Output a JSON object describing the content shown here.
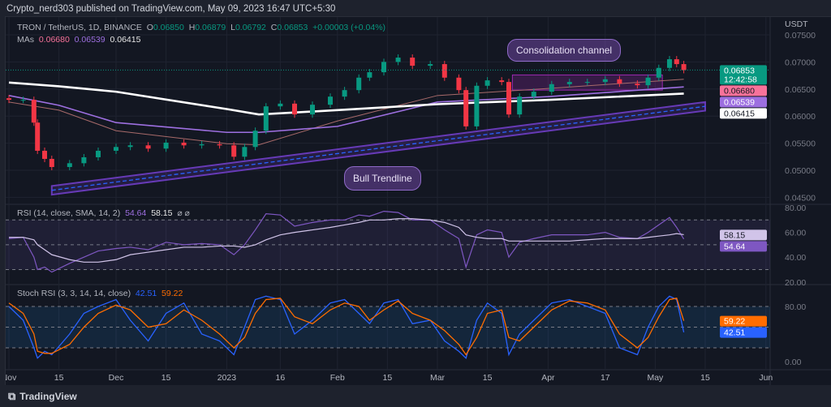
{
  "header": {
    "published": "Crypto_nerd303 published on TradingView.com, May 09, 2023 16:47 UTC+5:30"
  },
  "legend": {
    "symbol": "TRON / TetherUS, 1D, BINANCE",
    "o_label": "O",
    "o": "0.06850",
    "h_label": "H",
    "h": "0.06879",
    "l_label": "L",
    "l": "0.06792",
    "c_label": "C",
    "c": "0.06853",
    "change": "+0.00003 (+0.04%)",
    "mas_label": "MAs",
    "ma1": "0.06680",
    "ma2": "0.06539",
    "ma3": "0.06415"
  },
  "rsi_legend": {
    "label": "RSI (14, close, SMA, 14, 2)",
    "rsi": "54.64",
    "sma": "58.15",
    "icons": "⌀ ⌀"
  },
  "stoch_legend": {
    "label": "Stoch RSI (3, 3, 14, 14, close)",
    "k": "42.51",
    "d": "59.22"
  },
  "currency": "USDT",
  "annotations": {
    "consolidation": "Consolidation channel",
    "trendline": "Bull Trendline"
  },
  "price_tags": {
    "last": "0.06853",
    "countdown": "12:42:58",
    "ma1": "0.06680",
    "ma2": "0.06539",
    "ma3": "0.06415"
  },
  "rsi_tags": {
    "sma": "58.15",
    "rsi": "54.64"
  },
  "stoch_tags": {
    "d": "59.22",
    "k": "42.51"
  },
  "footer": {
    "brand": "TradingView"
  },
  "colors": {
    "up": "#089981",
    "down": "#f23645",
    "ma1": "#f7729a",
    "ma2": "#9d6fe0",
    "ma3": "#ffffff",
    "rsi": "#7e57c2",
    "k": "#2962ff",
    "d": "#ff6d00"
  },
  "chart_data": {
    "type": "candlestick",
    "x_ticks": [
      "Nov",
      "15",
      "Dec",
      "15",
      "2023",
      "16",
      "Feb",
      "15",
      "Mar",
      "15",
      "Apr",
      "17",
      "May",
      "15",
      "Jun"
    ],
    "x_tick_dates": [
      "2022-11-01",
      "2022-11-15",
      "2022-12-01",
      "2022-12-15",
      "2023-01-01",
      "2023-01-16",
      "2023-02-01",
      "2023-02-15",
      "2023-03-01",
      "2023-03-15",
      "2023-04-01",
      "2023-04-17",
      "2023-05-01",
      "2023-05-15",
      "2023-06-01"
    ],
    "y_ticks": [
      "0.07500",
      "0.07000",
      "0.06500",
      "0.06000",
      "0.05500",
      "0.05000",
      "0.04500"
    ],
    "ylim": [
      0.0435,
      0.0783
    ],
    "dates": [
      "2022-11-01",
      "2022-11-05",
      "2022-11-08",
      "2022-11-09",
      "2022-11-11",
      "2022-11-13",
      "2022-11-18",
      "2022-11-22",
      "2022-11-26",
      "2022-12-01",
      "2022-12-05",
      "2022-12-10",
      "2022-12-15",
      "2022-12-20",
      "2022-12-25",
      "2022-12-30",
      "2023-01-03",
      "2023-01-06",
      "2023-01-09",
      "2023-01-12",
      "2023-01-16",
      "2023-01-20",
      "2023-01-25",
      "2023-01-30",
      "2023-02-03",
      "2023-02-07",
      "2023-02-10",
      "2023-02-14",
      "2023-02-18",
      "2023-02-22",
      "2023-02-27",
      "2023-03-03",
      "2023-03-07",
      "2023-03-09",
      "2023-03-12",
      "2023-03-15",
      "2023-03-19",
      "2023-03-21",
      "2023-03-24",
      "2023-03-28",
      "2023-04-02",
      "2023-04-07",
      "2023-04-12",
      "2023-04-17",
      "2023-04-21",
      "2023-04-26",
      "2023-04-29",
      "2023-05-02",
      "2023-05-05",
      "2023-05-07",
      "2023-05-09"
    ],
    "close": [
      0.063,
      0.063,
      0.0588,
      0.0536,
      0.0521,
      0.0506,
      0.0513,
      0.0524,
      0.0536,
      0.0543,
      0.0546,
      0.054,
      0.0551,
      0.0546,
      0.0548,
      0.0546,
      0.0525,
      0.0543,
      0.0573,
      0.0618,
      0.0623,
      0.0603,
      0.0621,
      0.0636,
      0.0648,
      0.0671,
      0.0681,
      0.07,
      0.0708,
      0.0693,
      0.0696,
      0.0671,
      0.0648,
      0.0581,
      0.0656,
      0.0666,
      0.0663,
      0.0603,
      0.0636,
      0.0645,
      0.0659,
      0.0663,
      0.0663,
      0.0668,
      0.066,
      0.0657,
      0.0671,
      0.0689,
      0.0705,
      0.0696,
      0.0685
    ],
    "ma_dates": [
      "2022-11-01",
      "2022-11-15",
      "2022-12-01",
      "2023-01-01",
      "2023-01-10",
      "2023-02-01",
      "2023-03-01",
      "2023-04-01",
      "2023-05-09"
    ],
    "ma1": [
      0.0626,
      0.0611,
      0.0573,
      0.0549,
      0.0547,
      0.0591,
      0.0638,
      0.0651,
      0.0668
    ],
    "ma2": [
      0.0638,
      0.062,
      0.0588,
      0.057,
      0.057,
      0.0581,
      0.0626,
      0.0636,
      0.06539
    ],
    "ma3": [
      0.0662,
      0.0655,
      0.0645,
      0.0613,
      0.0603,
      0.0611,
      0.0622,
      0.063,
      0.06415
    ],
    "trendline": {
      "start": [
        "2022-11-13",
        0.0463
      ],
      "end": [
        "2023-05-15",
        0.0618
      ],
      "band": 0.0008
    },
    "consolidation_box": {
      "start": "2023-03-22",
      "end": "2023-05-03",
      "top": 0.0676,
      "bottom": 0.0648
    },
    "rsi": {
      "ylim": [
        18,
        84
      ],
      "y_ticks": [
        "80.00",
        "60.00",
        "40.00",
        "20.00"
      ],
      "bands": [
        70,
        50,
        30
      ],
      "values": [
        55,
        56,
        40,
        30,
        32,
        28,
        35,
        40,
        45,
        47,
        48,
        46,
        52,
        50,
        51,
        50,
        42,
        50,
        62,
        75,
        74,
        65,
        68,
        70,
        70,
        74,
        73,
        77,
        76,
        70,
        70,
        62,
        55,
        32,
        58,
        62,
        60,
        40,
        52,
        55,
        58,
        58,
        58,
        60,
        56,
        55,
        60,
        66,
        72,
        64,
        54.64
      ],
      "sma": [
        56,
        56,
        54,
        50,
        46,
        42,
        38,
        36,
        36,
        38,
        42,
        44,
        46,
        48,
        48,
        49,
        49,
        48,
        50,
        54,
        58,
        60,
        62,
        64,
        66,
        68,
        70,
        70,
        71,
        71,
        70,
        68,
        64,
        58,
        56,
        55,
        55,
        53,
        53,
        53,
        53,
        53,
        54,
        55,
        55,
        55,
        56,
        57,
        58,
        59,
        58.15
      ]
    },
    "stoch": {
      "ylim": [
        -8,
        100
      ],
      "y_ticks": [
        "80.00",
        "0.00"
      ],
      "bands": [
        80,
        50,
        20
      ],
      "k": [
        80,
        60,
        20,
        5,
        15,
        10,
        40,
        70,
        80,
        90,
        60,
        30,
        70,
        85,
        40,
        30,
        10,
        50,
        90,
        95,
        90,
        40,
        60,
        85,
        90,
        70,
        55,
        85,
        90,
        55,
        60,
        30,
        15,
        5,
        60,
        85,
        70,
        10,
        40,
        60,
        85,
        90,
        80,
        70,
        20,
        10,
        50,
        80,
        95,
        90,
        42.51
      ],
      "d": [
        85,
        70,
        40,
        15,
        12,
        12,
        25,
        50,
        70,
        82,
        75,
        50,
        55,
        75,
        60,
        40,
        20,
        35,
        70,
        90,
        92,
        65,
        55,
        75,
        85,
        80,
        60,
        75,
        88,
        70,
        60,
        45,
        25,
        10,
        35,
        70,
        75,
        35,
        30,
        50,
        75,
        88,
        85,
        75,
        40,
        20,
        35,
        65,
        90,
        92,
        59.22
      ]
    }
  }
}
